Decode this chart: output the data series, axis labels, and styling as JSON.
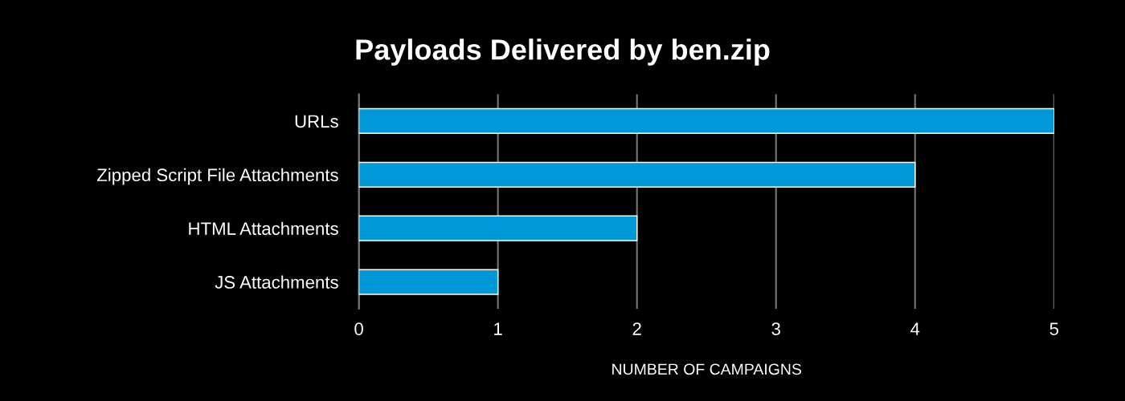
{
  "chart_data": {
    "type": "bar",
    "orientation": "horizontal",
    "title": "Payloads Delivered by ben.zip",
    "xlabel": "NUMBER OF CAMPAIGNS",
    "categories": [
      "URLs",
      "Zipped Script File Attachments",
      "HTML Attachments",
      "JS Attachments"
    ],
    "values": [
      5,
      4,
      2,
      1
    ],
    "color": "#0099d8",
    "xlim": [
      0,
      5
    ],
    "xticks": [
      0,
      1,
      2,
      3,
      4,
      5
    ],
    "grid": "x",
    "legend": false
  }
}
